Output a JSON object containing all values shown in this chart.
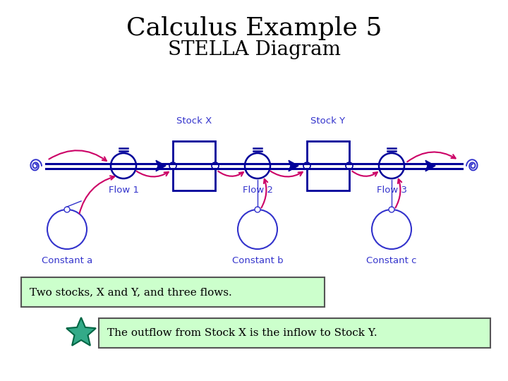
{
  "title": "Calculus Example 5",
  "subtitle": "STELLA Diagram",
  "title_fontsize": 26,
  "subtitle_fontsize": 20,
  "title_color": "#000000",
  "bg_color": "#ffffff",
  "blue_color": "#3333cc",
  "pink_color": "#cc0066",
  "dark_blue": "#000099",
  "label_text1": "Two stocks, X and Y, and three flows.",
  "label_text2": "The outflow from Stock X is the inflow to Stock Y.",
  "stock_x_label": "Stock X",
  "stock_y_label": "Stock Y",
  "flow1_label": "Flow 1",
  "flow2_label": "Flow 2",
  "flow3_label": "Flow 3",
  "const_a_label": "Constant a",
  "const_b_label": "Constant b",
  "const_c_label": "Constant c",
  "box1_color": "#ccffcc",
  "box2_color": "#ccffcc",
  "star_fill": "#33aa88",
  "star_edge": "#006644"
}
